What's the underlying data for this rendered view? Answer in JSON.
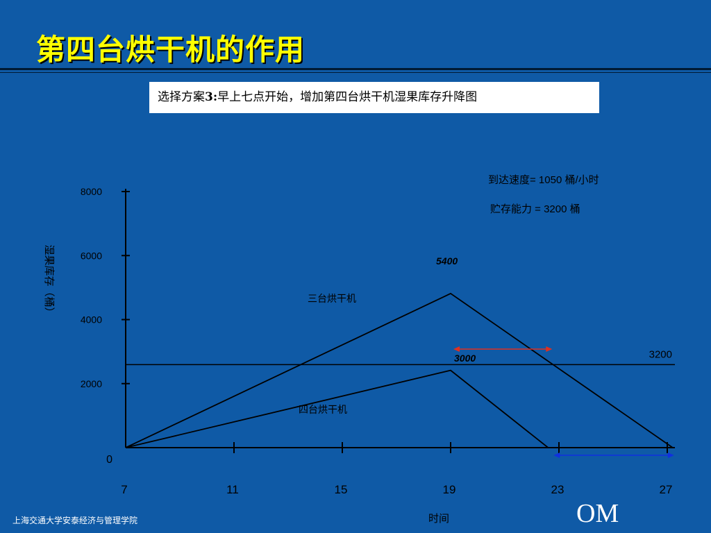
{
  "slide": {
    "title": "第四台烘干机的作用",
    "subtitle_prefix": "选择方案",
    "subtitle_num": "3:",
    "subtitle_rest": "早上七点开始，增加第四台烘干机湿果库存升降图",
    "footer_left": "上海交通大学安泰经济与管理学院",
    "footer_right": "OM"
  },
  "chart_data": {
    "type": "line",
    "x": [
      7,
      19,
      27.2
    ],
    "xlabel": "时间",
    "ylabel": "湿果库存（桶）",
    "x_ticks": [
      7,
      11,
      15,
      19,
      23,
      27
    ],
    "y_ticks": [
      0,
      2000,
      4000,
      6000,
      8000
    ],
    "xlim": [
      7,
      28
    ],
    "ylim": [
      0,
      8000
    ],
    "series": [
      {
        "name": "三台烘干机",
        "points": [
          [
            7,
            0
          ],
          [
            19,
            5400
          ],
          [
            27.2,
            0
          ]
        ],
        "color": "#000000"
      },
      {
        "name": "四台烘干机",
        "points": [
          [
            7,
            0
          ],
          [
            19,
            3000
          ],
          [
            22.6,
            0
          ]
        ],
        "color": "#000000"
      }
    ],
    "reference_line": {
      "value": 3200,
      "label": "3200",
      "color": "#000000"
    },
    "annotations": {
      "peak_three": {
        "x": 19,
        "y": 5400,
        "label": "5400"
      },
      "peak_four": {
        "x": 19,
        "y": 3000,
        "label": "3000"
      },
      "arrival_rate": "到达速度= 1050  桶/小时",
      "storage": "贮存能力 = 3200   桶"
    },
    "arrows": [
      {
        "from": 19,
        "to": 22.7,
        "y": 3000,
        "color": "#e03020"
      },
      {
        "from": 22.7,
        "to": 27.2,
        "y": -300,
        "color": "#1030e0"
      }
    ],
    "grid": false
  }
}
